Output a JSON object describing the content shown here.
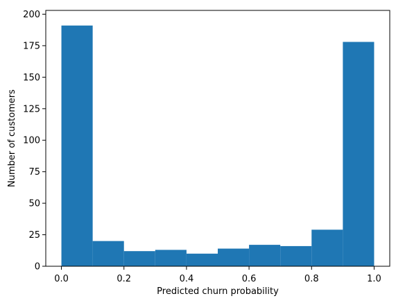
{
  "chart_data": {
    "type": "bar",
    "subtype": "histogram",
    "xlabel": "Predicted churn probability",
    "ylabel": "Number of customers",
    "xlim": [
      -0.05,
      1.05
    ],
    "ylim": [
      0,
      203
    ],
    "bins": [
      {
        "start": 0.0,
        "end": 0.1,
        "count": 191
      },
      {
        "start": 0.1,
        "end": 0.2,
        "count": 20
      },
      {
        "start": 0.2,
        "end": 0.3,
        "count": 12
      },
      {
        "start": 0.3,
        "end": 0.4,
        "count": 13
      },
      {
        "start": 0.4,
        "end": 0.5,
        "count": 10
      },
      {
        "start": 0.5,
        "end": 0.6,
        "count": 14
      },
      {
        "start": 0.6,
        "end": 0.7,
        "count": 17
      },
      {
        "start": 0.7,
        "end": 0.8,
        "count": 16
      },
      {
        "start": 0.8,
        "end": 0.9,
        "count": 29
      },
      {
        "start": 0.9,
        "end": 1.0,
        "count": 178
      }
    ],
    "x_ticks": [
      {
        "value": 0.0,
        "label": "0.0"
      },
      {
        "value": 0.2,
        "label": "0.2"
      },
      {
        "value": 0.4,
        "label": "0.4"
      },
      {
        "value": 0.6,
        "label": "0.6"
      },
      {
        "value": 0.8,
        "label": "0.8"
      },
      {
        "value": 1.0,
        "label": "1.0"
      }
    ],
    "y_ticks": [
      {
        "value": 0,
        "label": "0"
      },
      {
        "value": 25,
        "label": "25"
      },
      {
        "value": 50,
        "label": "50"
      },
      {
        "value": 75,
        "label": "75"
      },
      {
        "value": 100,
        "label": "100"
      },
      {
        "value": 125,
        "label": "125"
      },
      {
        "value": 150,
        "label": "150"
      },
      {
        "value": 175,
        "label": "175"
      },
      {
        "value": 200,
        "label": "200"
      }
    ],
    "bar_color": "#1f77b4",
    "grid": false,
    "legend": "none"
  }
}
